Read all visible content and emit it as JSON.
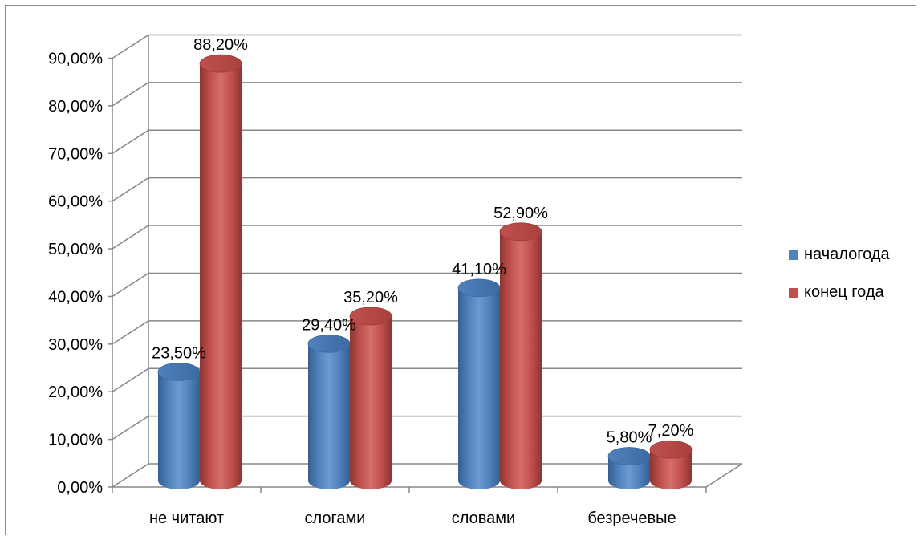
{
  "chart_data": {
    "type": "bar",
    "title": "",
    "xlabel": "",
    "ylabel": "",
    "categories": [
      "не читают",
      "слогами",
      "словами",
      "безречевые"
    ],
    "series": [
      {
        "name": "началогода",
        "color": "#4f81bd",
        "values": [
          23.5,
          29.4,
          41.1,
          5.8
        ],
        "labels": [
          "23,50%",
          "29,40%",
          "41,10%",
          "5,80%"
        ]
      },
      {
        "name": "конец года",
        "color": "#c0504d",
        "values": [
          88.2,
          35.2,
          52.9,
          7.2
        ],
        "labels": [
          "88,20%",
          "35,20%",
          "52,90%",
          "7,20%"
        ]
      }
    ],
    "ylim": [
      0,
      90
    ],
    "yticks": [
      0,
      10,
      20,
      30,
      40,
      50,
      60,
      70,
      80,
      90
    ],
    "ytick_labels": [
      "0,00%",
      "10,00%",
      "20,00%",
      "30,00%",
      "40,00%",
      "50,00%",
      "60,00%",
      "70,00%",
      "80,00%",
      "90,00%"
    ],
    "grid": true,
    "style": "3d-cylinder",
    "legend_position": "right"
  }
}
